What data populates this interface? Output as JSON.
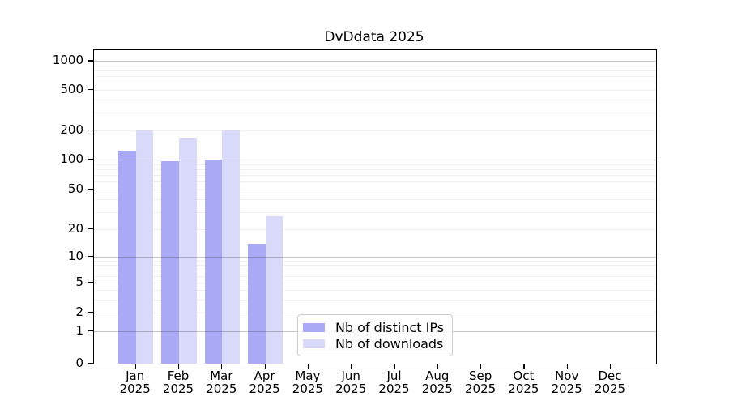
{
  "chart_data": {
    "type": "bar",
    "title": "DvDdata 2025",
    "categories": [
      "Jan",
      "Feb",
      "Mar",
      "Apr",
      "May",
      "Jun",
      "Jul",
      "Aug",
      "Sep",
      "Oct",
      "Nov",
      "Dec"
    ],
    "x_tick_year": "2025",
    "series": [
      {
        "name": "Nb of distinct IPs",
        "color": "#a9a9f5",
        "values": [
          125,
          97,
          100,
          14,
          0,
          0,
          0,
          0,
          0,
          0,
          0,
          0
        ]
      },
      {
        "name": "Nb of downloads",
        "color": "#d9d9fa",
        "values": [
          200,
          170,
          200,
          27,
          0,
          0,
          0,
          0,
          0,
          0,
          0,
          0
        ]
      }
    ],
    "y_ticks": [
      0,
      1,
      2,
      5,
      10,
      20,
      50,
      100,
      200,
      500,
      1000
    ],
    "y_major_ticks": [
      1,
      10,
      100,
      1000
    ],
    "y_scale": "log(1+x)",
    "ylim": [
      0,
      1280
    ],
    "xlabel": "",
    "ylabel": "",
    "grid": "both",
    "legend_position": "lower center"
  },
  "colors": {
    "axis": "#000000",
    "background": "#ffffff",
    "legend_border": "#cccccc"
  }
}
